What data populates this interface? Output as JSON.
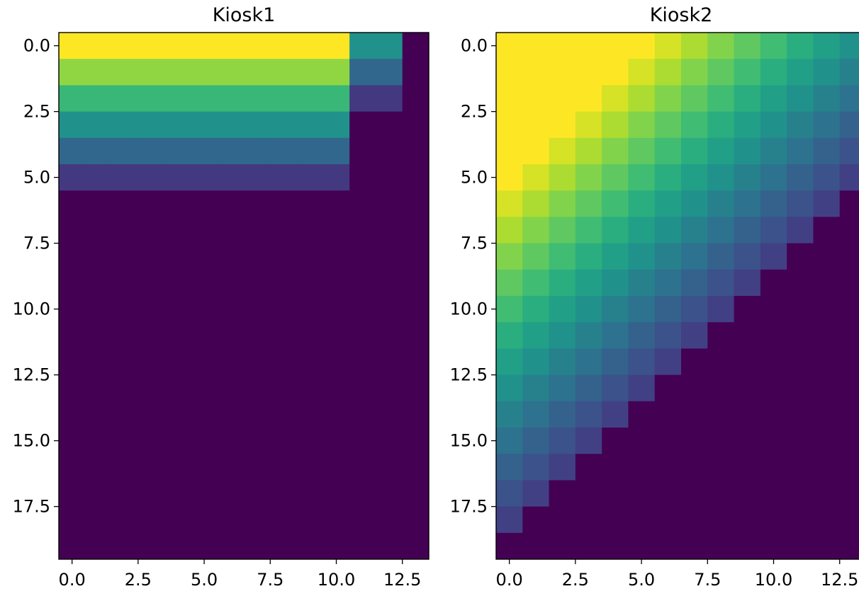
{
  "chart_data": [
    {
      "type": "heatmap",
      "title": "Kiosk1",
      "rows": 20,
      "cols": 14,
      "xlim": [
        -0.5,
        13.5
      ],
      "ylim": [
        19.5,
        -0.5
      ],
      "y_inverted": true,
      "xticks": [
        0.0,
        2.5,
        5.0,
        7.5,
        10.0,
        12.5
      ],
      "xtick_labels": [
        "0.0",
        "2.5",
        "5.0",
        "7.5",
        "10.0",
        "12.5"
      ],
      "yticks": [
        0.0,
        2.5,
        5.0,
        7.5,
        10.0,
        12.5,
        15.0,
        17.5
      ],
      "ytick_labels": [
        "0.0",
        "2.5",
        "5.0",
        "7.5",
        "10.0",
        "12.5",
        "15.0",
        "17.5"
      ],
      "colormap": "viridis",
      "vmin": 0,
      "vmax": 6,
      "values": [
        [
          6,
          6,
          6,
          6,
          6,
          6,
          6,
          6,
          6,
          6,
          6,
          3,
          3,
          0
        ],
        [
          5,
          5,
          5,
          5,
          5,
          5,
          5,
          5,
          5,
          5,
          5,
          2,
          2,
          0
        ],
        [
          4,
          4,
          4,
          4,
          4,
          4,
          4,
          4,
          4,
          4,
          4,
          1,
          1,
          0
        ],
        [
          3,
          3,
          3,
          3,
          3,
          3,
          3,
          3,
          3,
          3,
          3,
          0,
          0,
          0
        ],
        [
          2,
          2,
          2,
          2,
          2,
          2,
          2,
          2,
          2,
          2,
          2,
          0,
          0,
          0
        ],
        [
          1,
          1,
          1,
          1,
          1,
          1,
          1,
          1,
          1,
          1,
          1,
          0,
          0,
          0
        ],
        [
          0,
          0,
          0,
          0,
          0,
          0,
          0,
          0,
          0,
          0,
          0,
          0,
          0,
          0
        ],
        [
          0,
          0,
          0,
          0,
          0,
          0,
          0,
          0,
          0,
          0,
          0,
          0,
          0,
          0
        ],
        [
          0,
          0,
          0,
          0,
          0,
          0,
          0,
          0,
          0,
          0,
          0,
          0,
          0,
          0
        ],
        [
          0,
          0,
          0,
          0,
          0,
          0,
          0,
          0,
          0,
          0,
          0,
          0,
          0,
          0
        ],
        [
          0,
          0,
          0,
          0,
          0,
          0,
          0,
          0,
          0,
          0,
          0,
          0,
          0,
          0
        ],
        [
          0,
          0,
          0,
          0,
          0,
          0,
          0,
          0,
          0,
          0,
          0,
          0,
          0,
          0
        ],
        [
          0,
          0,
          0,
          0,
          0,
          0,
          0,
          0,
          0,
          0,
          0,
          0,
          0,
          0
        ],
        [
          0,
          0,
          0,
          0,
          0,
          0,
          0,
          0,
          0,
          0,
          0,
          0,
          0,
          0
        ],
        [
          0,
          0,
          0,
          0,
          0,
          0,
          0,
          0,
          0,
          0,
          0,
          0,
          0,
          0
        ],
        [
          0,
          0,
          0,
          0,
          0,
          0,
          0,
          0,
          0,
          0,
          0,
          0,
          0,
          0
        ],
        [
          0,
          0,
          0,
          0,
          0,
          0,
          0,
          0,
          0,
          0,
          0,
          0,
          0,
          0
        ],
        [
          0,
          0,
          0,
          0,
          0,
          0,
          0,
          0,
          0,
          0,
          0,
          0,
          0,
          0
        ],
        [
          0,
          0,
          0,
          0,
          0,
          0,
          0,
          0,
          0,
          0,
          0,
          0,
          0,
          0
        ],
        [
          0,
          0,
          0,
          0,
          0,
          0,
          0,
          0,
          0,
          0,
          0,
          0,
          0,
          0
        ]
      ]
    },
    {
      "type": "heatmap",
      "title": "Kiosk2",
      "rows": 20,
      "cols": 14,
      "xlim": [
        -0.5,
        13.5
      ],
      "ylim": [
        19.5,
        -0.5
      ],
      "y_inverted": true,
      "xticks": [
        0.0,
        2.5,
        5.0,
        7.5,
        10.0,
        12.5
      ],
      "xtick_labels": [
        "0.0",
        "2.5",
        "5.0",
        "7.5",
        "10.0",
        "12.5"
      ],
      "yticks": [
        0.0,
        2.5,
        5.0,
        7.5,
        10.0,
        12.5,
        15.0,
        17.5
      ],
      "ytick_labels": [
        "0.0",
        "2.5",
        "5.0",
        "7.5",
        "10.0",
        "12.5",
        "15.0",
        "17.5"
      ],
      "colormap": "viridis",
      "vmin": 0,
      "vmax": 1,
      "rule": "value = clamp(1 - 0.0625 * max(0, row + col - 5), 0, 1) where row + col <= 18, else 0",
      "row_col_formula": true
    }
  ]
}
